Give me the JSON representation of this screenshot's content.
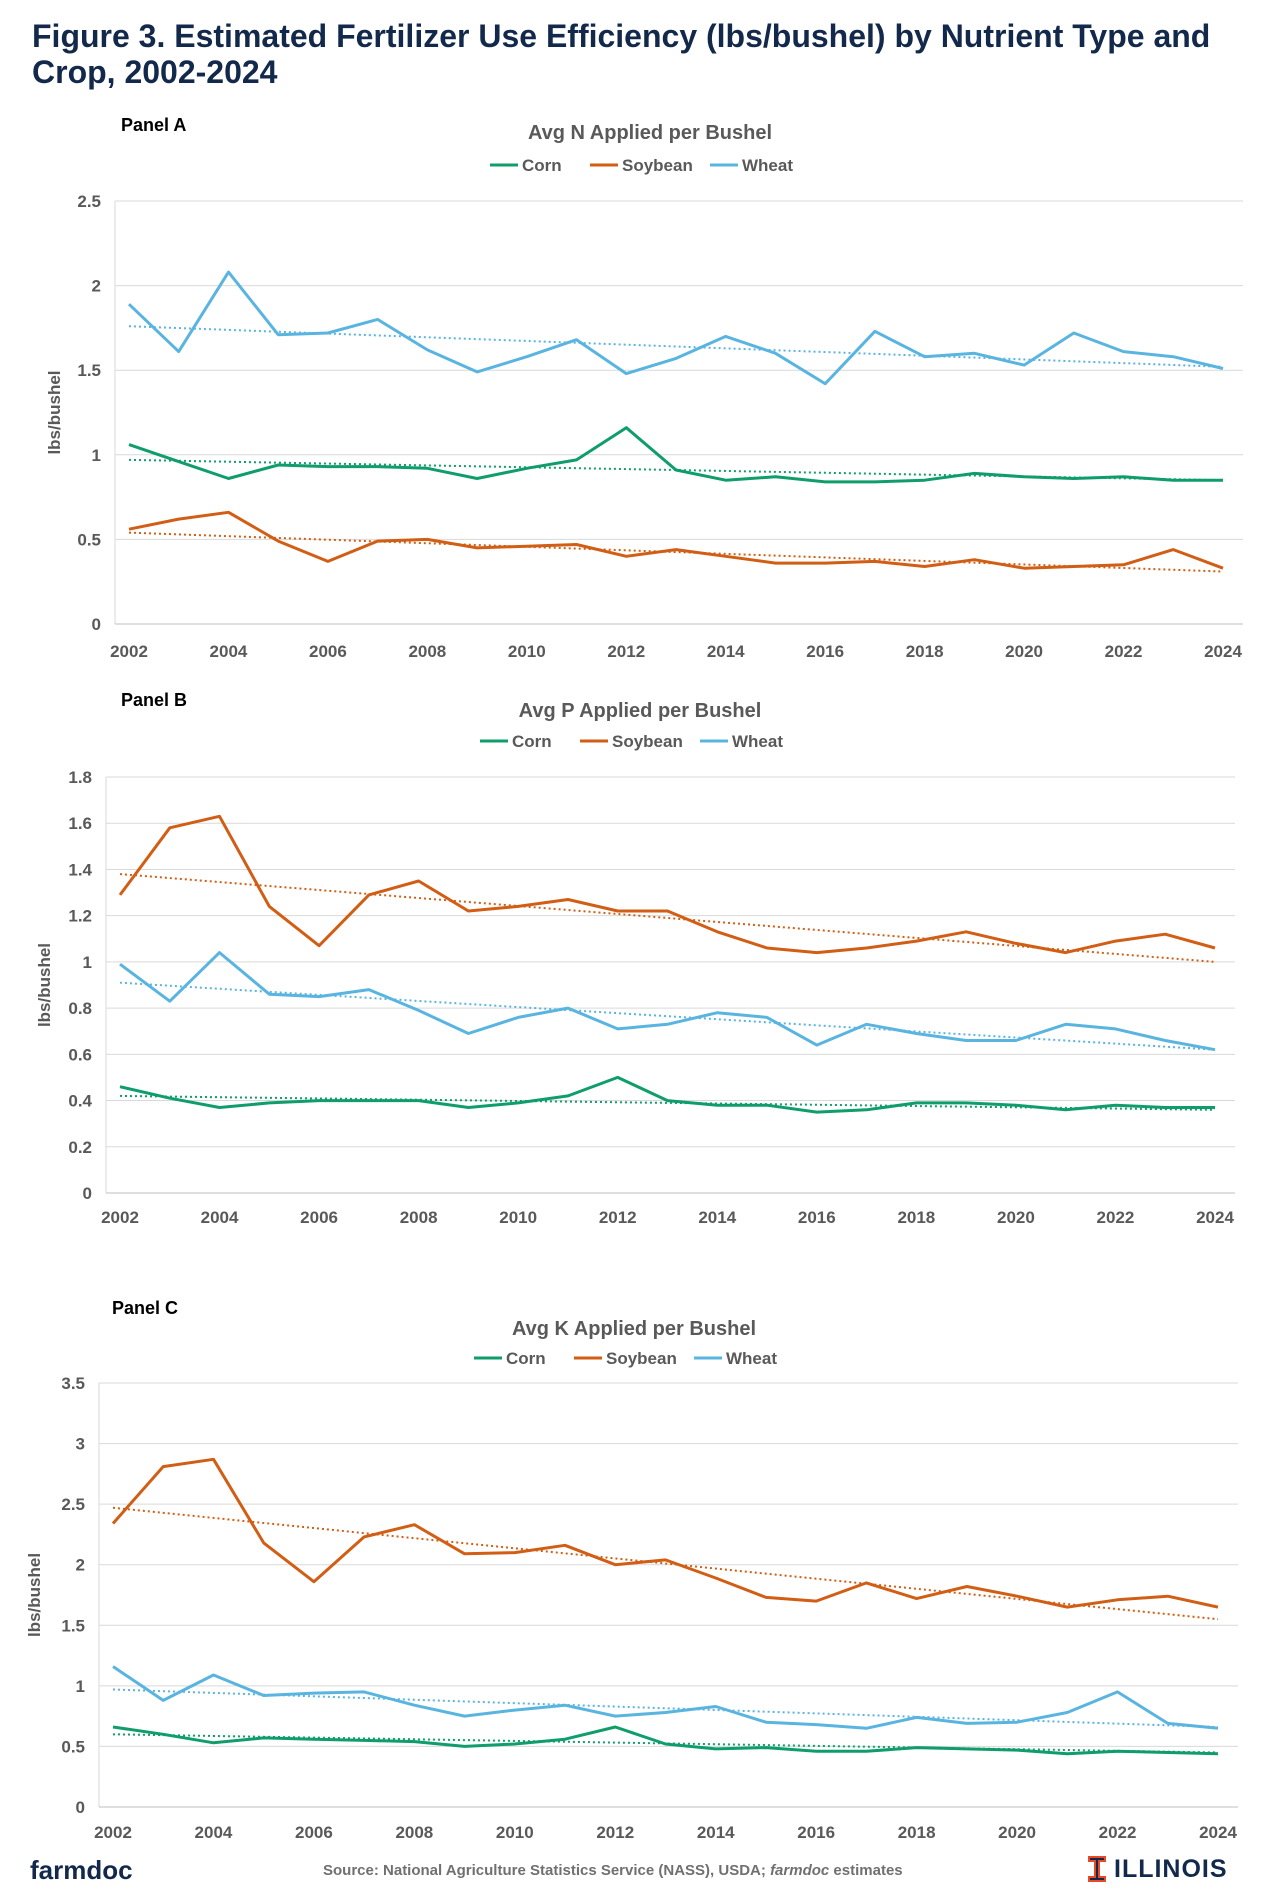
{
  "figure": {
    "title": "Figure 3. Estimated Fertilizer Use Efficiency (lbs/bushel) by Nutrient Type and Crop, 2002-2024",
    "footer_brand": "farmdoc",
    "source_prefix": "Source: National Agriculture  Statistics Service (NASS), USDA; ",
    "source_italic": "farmdoc",
    "source_suffix": " estimates",
    "logo_text": "ILLINOIS",
    "logo_icon": "block-i-icon"
  },
  "colors": {
    "Corn": "#0f9d6b",
    "Soybean": "#d15e14",
    "Wheat": "#5ab4e0",
    "title": "#13294b",
    "grid": "#d9d9d9",
    "text": "#595959"
  },
  "chart_data": [
    {
      "type": "line",
      "panel_label": "Panel A",
      "title": "Avg N Applied  per Bushel",
      "xlabel": "",
      "ylabel": "lbs/bushel",
      "x": [
        2002,
        2003,
        2004,
        2005,
        2006,
        2007,
        2008,
        2009,
        2010,
        2011,
        2012,
        2013,
        2014,
        2015,
        2016,
        2017,
        2018,
        2019,
        2020,
        2021,
        2022,
        2023,
        2024
      ],
      "xticks": [
        2002,
        2004,
        2006,
        2008,
        2010,
        2012,
        2014,
        2016,
        2018,
        2020,
        2022,
        2024
      ],
      "ylim": [
        0,
        2.5
      ],
      "yticks": [
        0,
        0.5,
        1,
        1.5,
        2,
        2.5
      ],
      "ytick_labels": [
        "0",
        "0.5",
        "1",
        "1.5",
        "2",
        "2.5"
      ],
      "grid": true,
      "legend_position": "top-center",
      "series": [
        {
          "name": "Corn",
          "values": [
            1.06,
            0.96,
            0.86,
            0.94,
            0.93,
            0.93,
            0.92,
            0.86,
            0.92,
            0.97,
            1.16,
            0.91,
            0.85,
            0.87,
            0.84,
            0.84,
            0.85,
            0.89,
            0.87,
            0.86,
            0.87,
            0.85,
            0.85
          ],
          "trend": [
            0.97,
            0.85
          ]
        },
        {
          "name": "Soybean",
          "values": [
            0.56,
            0.62,
            0.66,
            0.49,
            0.37,
            0.49,
            0.5,
            0.45,
            0.46,
            0.47,
            0.4,
            0.44,
            0.4,
            0.36,
            0.36,
            0.37,
            0.34,
            0.38,
            0.33,
            0.34,
            0.35,
            0.44,
            0.33
          ],
          "trend": [
            0.54,
            0.31
          ]
        },
        {
          "name": "Wheat",
          "values": [
            1.89,
            1.61,
            2.08,
            1.71,
            1.72,
            1.8,
            1.62,
            1.49,
            1.58,
            1.68,
            1.48,
            1.57,
            1.7,
            1.6,
            1.42,
            1.73,
            1.58,
            1.6,
            1.53,
            1.72,
            1.61,
            1.58,
            1.51
          ],
          "trend": [
            1.76,
            1.52
          ]
        }
      ]
    },
    {
      "type": "line",
      "panel_label": "Panel B",
      "title": "Avg P Applied  per Bushel",
      "xlabel": "",
      "ylabel": "lbs/bushel",
      "x": [
        2002,
        2003,
        2004,
        2005,
        2006,
        2007,
        2008,
        2009,
        2010,
        2011,
        2012,
        2013,
        2014,
        2015,
        2016,
        2017,
        2018,
        2019,
        2020,
        2021,
        2022,
        2023,
        2024
      ],
      "xticks": [
        2002,
        2004,
        2006,
        2008,
        2010,
        2012,
        2014,
        2016,
        2018,
        2020,
        2022,
        2024
      ],
      "ylim": [
        0,
        1.8
      ],
      "yticks": [
        0,
        0.2,
        0.4,
        0.6,
        0.8,
        1.0,
        1.2,
        1.4,
        1.6,
        1.8
      ],
      "ytick_labels": [
        "0",
        "0.2",
        "0.4",
        "0.6",
        "0.8",
        "1",
        "1.2",
        "1.4",
        "1.6",
        "1.8"
      ],
      "grid": true,
      "legend_position": "top-center",
      "series": [
        {
          "name": "Corn",
          "values": [
            0.46,
            0.41,
            0.37,
            0.39,
            0.4,
            0.4,
            0.4,
            0.37,
            0.39,
            0.42,
            0.5,
            0.4,
            0.38,
            0.38,
            0.35,
            0.36,
            0.39,
            0.39,
            0.38,
            0.36,
            0.38,
            0.37,
            0.37
          ],
          "trend": [
            0.42,
            0.36
          ]
        },
        {
          "name": "Soybean",
          "values": [
            1.29,
            1.58,
            1.63,
            1.24,
            1.07,
            1.29,
            1.35,
            1.22,
            1.24,
            1.27,
            1.22,
            1.22,
            1.13,
            1.06,
            1.04,
            1.06,
            1.09,
            1.13,
            1.08,
            1.04,
            1.09,
            1.12,
            1.06
          ],
          "trend": [
            1.38,
            1.0
          ]
        },
        {
          "name": "Wheat",
          "values": [
            0.99,
            0.83,
            1.04,
            0.86,
            0.85,
            0.88,
            0.79,
            0.69,
            0.76,
            0.8,
            0.71,
            0.73,
            0.78,
            0.76,
            0.64,
            0.73,
            0.69,
            0.66,
            0.66,
            0.73,
            0.71,
            0.66,
            0.62
          ],
          "trend": [
            0.91,
            0.62
          ]
        }
      ]
    },
    {
      "type": "line",
      "panel_label": "Panel C",
      "title": "Avg K Applied  per Bushel",
      "xlabel": "",
      "ylabel": "lbs/bushel",
      "x": [
        2002,
        2003,
        2004,
        2005,
        2006,
        2007,
        2008,
        2009,
        2010,
        2011,
        2012,
        2013,
        2014,
        2015,
        2016,
        2017,
        2018,
        2019,
        2020,
        2021,
        2022,
        2023,
        2024
      ],
      "xticks": [
        2002,
        2004,
        2006,
        2008,
        2010,
        2012,
        2014,
        2016,
        2018,
        2020,
        2022,
        2024
      ],
      "ylim": [
        0,
        3.5
      ],
      "yticks": [
        0,
        0.5,
        1,
        1.5,
        2,
        2.5,
        3,
        3.5
      ],
      "ytick_labels": [
        "0",
        "0.5",
        "1",
        "1.5",
        "2",
        "2.5",
        "3",
        "3.5"
      ],
      "grid": true,
      "legend_position": "top-center",
      "series": [
        {
          "name": "Corn",
          "values": [
            0.66,
            0.6,
            0.53,
            0.57,
            0.56,
            0.55,
            0.54,
            0.5,
            0.52,
            0.56,
            0.66,
            0.52,
            0.48,
            0.49,
            0.46,
            0.46,
            0.49,
            0.48,
            0.47,
            0.44,
            0.46,
            0.45,
            0.44
          ],
          "trend": [
            0.6,
            0.45
          ]
        },
        {
          "name": "Soybean",
          "values": [
            2.34,
            2.81,
            2.87,
            2.18,
            1.86,
            2.23,
            2.33,
            2.09,
            2.1,
            2.16,
            2.0,
            2.04,
            1.89,
            1.73,
            1.7,
            1.85,
            1.72,
            1.82,
            1.74,
            1.65,
            1.71,
            1.74,
            1.65
          ],
          "trend": [
            2.47,
            1.55
          ]
        },
        {
          "name": "Wheat",
          "values": [
            1.16,
            0.88,
            1.09,
            0.92,
            0.94,
            0.95,
            0.84,
            0.75,
            0.8,
            0.84,
            0.75,
            0.78,
            0.83,
            0.7,
            0.68,
            0.65,
            0.74,
            0.69,
            0.7,
            0.78,
            0.95,
            0.69,
            0.65
          ],
          "trend": [
            0.97,
            0.66
          ]
        }
      ]
    }
  ]
}
